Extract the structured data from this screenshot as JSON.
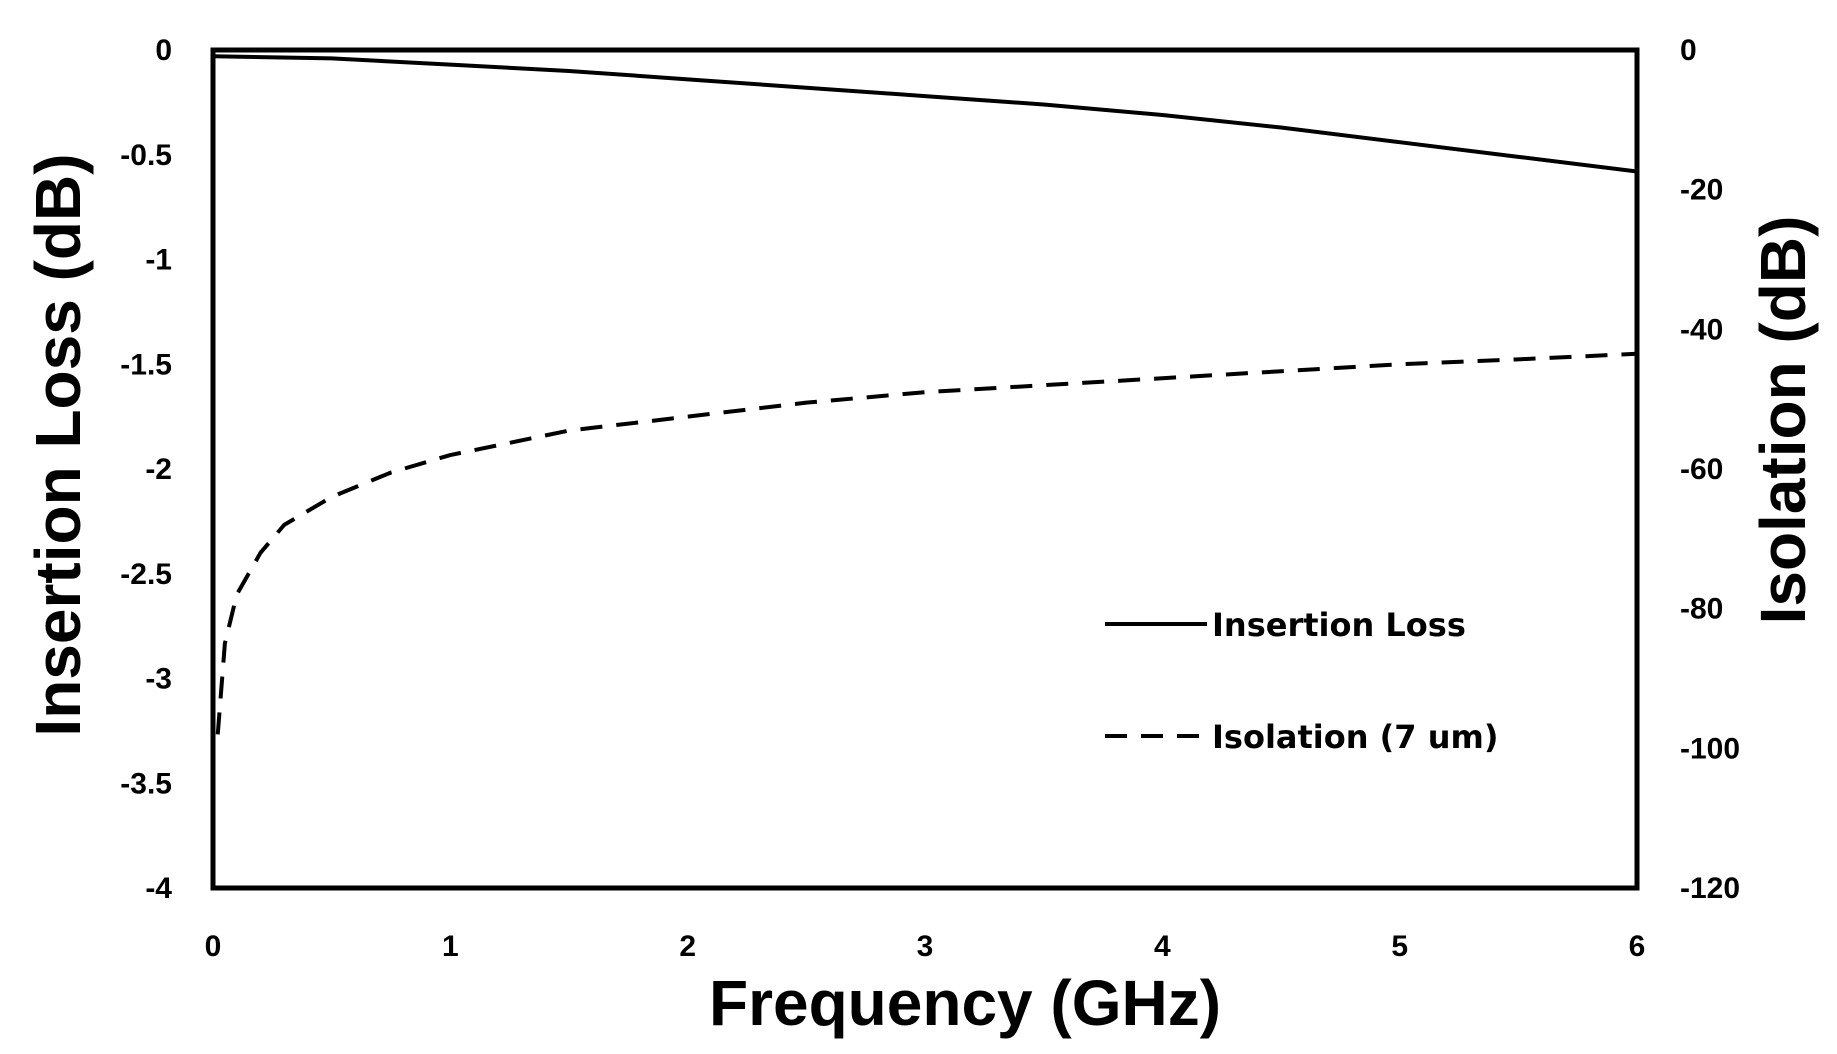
{
  "chart_data": {
    "type": "line",
    "title": "",
    "xlabel": "Frequency (GHz)",
    "ylabel": "Insertion Loss (dB)",
    "y2label": "Isolation (dB)",
    "xlim": [
      0,
      6
    ],
    "ylim": [
      -4,
      0
    ],
    "y2lim": [
      -120,
      0
    ],
    "x_ticks": [
      "0",
      "1",
      "2",
      "3",
      "4",
      "5",
      "6"
    ],
    "y_ticks": [
      "0",
      "-0.5",
      "-1",
      "-1.5",
      "-2",
      "-2.5",
      "-3",
      "-3.5",
      "-4"
    ],
    "y2_ticks": [
      "0",
      "-20",
      "-40",
      "-60",
      "-80",
      "-100",
      "-120"
    ],
    "grid": false,
    "legend_position": "lower-right",
    "series": [
      {
        "name": "Insertion Loss",
        "axis": "left",
        "style": "solid",
        "color": "#000000",
        "x": [
          0,
          0.5,
          1,
          1.5,
          2,
          2.5,
          3,
          3.5,
          4,
          4.5,
          5,
          5.5,
          6
        ],
        "y": [
          -0.03,
          -0.04,
          -0.07,
          -0.1,
          -0.14,
          -0.18,
          -0.22,
          -0.26,
          -0.31,
          -0.37,
          -0.44,
          -0.51,
          -0.58
        ]
      },
      {
        "name": "Isolation (7 um)",
        "axis": "right",
        "style": "dashed",
        "color": "#000000",
        "x": [
          0.02,
          0.05,
          0.1,
          0.2,
          0.3,
          0.5,
          0.75,
          1,
          1.5,
          2,
          2.5,
          3,
          3.5,
          4,
          4.5,
          5,
          5.5,
          6
        ],
        "y": [
          -98,
          -85,
          -78,
          -72,
          -68,
          -64,
          -60.5,
          -58,
          -54.5,
          -52.5,
          -50.5,
          -49,
          -48,
          -47,
          -46,
          -45,
          -44.3,
          -43.5
        ]
      }
    ]
  }
}
